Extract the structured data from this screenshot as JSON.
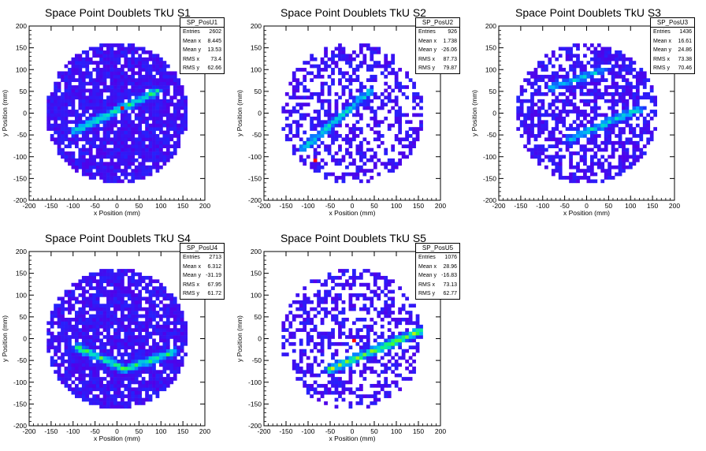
{
  "chart_data": [
    {
      "type": "heatmap",
      "title": "Space Point Doublets TkU S1",
      "xlabel": "x Position (mm)",
      "ylabel": "y Position (mm)",
      "xlim": [
        -200,
        200
      ],
      "ylim": [
        -200,
        200
      ],
      "xticks": [
        -200,
        -150,
        -100,
        -50,
        0,
        50,
        100,
        150,
        200
      ],
      "yticks": [
        -200,
        -150,
        -100,
        -50,
        0,
        50,
        100,
        150,
        200
      ],
      "histogram_name": "SP_PosU1",
      "stats": [
        {
          "label": "Entries",
          "value": "2602"
        },
        {
          "label": "Mean x",
          "value": "8.445"
        },
        {
          "label": "Mean y",
          "value": "13.53"
        },
        {
          "label": "RMS x",
          "value": "73.4"
        },
        {
          "label": "RMS y",
          "value": "62.66"
        }
      ],
      "occupancy": 0.85,
      "tracks": [
        {
          "from": [
            -95,
            -40
          ],
          "to": [
            90,
            50
          ],
          "peak": 0.55
        }
      ],
      "hotspots": [
        [
          10,
          15
        ]
      ]
    },
    {
      "type": "heatmap",
      "title": "Space Point Doublets TkU S2",
      "xlabel": "x Position (mm)",
      "ylabel": "y Position (mm)",
      "xlim": [
        -200,
        200
      ],
      "ylim": [
        -200,
        200
      ],
      "xticks": [
        -200,
        -150,
        -100,
        -50,
        0,
        50,
        100,
        150,
        200
      ],
      "yticks": [
        -200,
        -150,
        -100,
        -50,
        0,
        50,
        100,
        150,
        200
      ],
      "histogram_name": "SP_PosU2",
      "stats": [
        {
          "label": "Entries",
          "value": "926"
        },
        {
          "label": "Mean x",
          "value": "1.738"
        },
        {
          "label": "Mean y",
          "value": "-26.06"
        },
        {
          "label": "RMS x",
          "value": "87.73"
        },
        {
          "label": "RMS y",
          "value": "79.87"
        }
      ],
      "occupancy": 0.45,
      "tracks": [
        {
          "from": [
            -110,
            -80
          ],
          "to": [
            40,
            50
          ],
          "peak": 0.45
        }
      ],
      "hotspots": [
        [
          -85,
          -110
        ]
      ]
    },
    {
      "type": "heatmap",
      "title": "Space Point Doublets TkU S3",
      "xlabel": "x Position (mm)",
      "ylabel": "y Position (mm)",
      "xlim": [
        -200,
        200
      ],
      "ylim": [
        -200,
        200
      ],
      "xticks": [
        -200,
        -150,
        -100,
        -50,
        0,
        50,
        100,
        150,
        200
      ],
      "yticks": [
        -200,
        -150,
        -100,
        -50,
        0,
        50,
        100,
        150,
        200
      ],
      "histogram_name": "SP_PosU3",
      "stats": [
        {
          "label": "Entries",
          "value": "1436"
        },
        {
          "label": "Mean x",
          "value": "16.61"
        },
        {
          "label": "Mean y",
          "value": "24.86"
        },
        {
          "label": "RMS x",
          "value": "73.38"
        },
        {
          "label": "RMS y",
          "value": "70.46"
        }
      ],
      "occupancy": 0.62,
      "tracks": [
        {
          "from": [
            -40,
            -60
          ],
          "to": [
            120,
            10
          ],
          "peak": 0.45
        },
        {
          "from": [
            -80,
            60
          ],
          "to": [
            40,
            100
          ],
          "peak": 0.4
        }
      ],
      "hotspots": []
    },
    {
      "type": "heatmap",
      "title": "Space Point Doublets TkU S4",
      "xlabel": "x Position (mm)",
      "ylabel": "y Position (mm)",
      "xlim": [
        -200,
        200
      ],
      "ylim": [
        -200,
        200
      ],
      "xticks": [
        -200,
        -150,
        -100,
        -50,
        0,
        50,
        100,
        150,
        200
      ],
      "yticks": [
        -200,
        -150,
        -100,
        -50,
        0,
        50,
        100,
        150,
        200
      ],
      "histogram_name": "SP_PosU4",
      "stats": [
        {
          "label": "Entries",
          "value": "2713"
        },
        {
          "label": "Mean x",
          "value": "6.312"
        },
        {
          "label": "Mean y",
          "value": "-31.19"
        },
        {
          "label": "RMS x",
          "value": "67.95"
        },
        {
          "label": "RMS y",
          "value": "61.72"
        }
      ],
      "occupancy": 0.85,
      "tracks": [
        {
          "from": [
            -90,
            -20
          ],
          "to": [
            20,
            -70
          ],
          "peak": 0.6
        },
        {
          "from": [
            20,
            -70
          ],
          "to": [
            130,
            -30
          ],
          "peak": 0.55
        }
      ],
      "hotspots": []
    },
    {
      "type": "heatmap",
      "title": "Space Point Doublets TkU S5",
      "xlabel": "x Position (mm)",
      "ylabel": "y Position (mm)",
      "xlim": [
        -200,
        200
      ],
      "ylim": [
        -200,
        200
      ],
      "xticks": [
        -200,
        -150,
        -100,
        -50,
        0,
        50,
        100,
        150,
        200
      ],
      "yticks": [
        -200,
        -150,
        -100,
        -50,
        0,
        50,
        100,
        150,
        200
      ],
      "histogram_name": "SP_PosU5",
      "stats": [
        {
          "label": "Entries",
          "value": "1076"
        },
        {
          "label": "Mean x",
          "value": "28.96"
        },
        {
          "label": "Mean y",
          "value": "-16.83"
        },
        {
          "label": "RMS x",
          "value": "73.13"
        },
        {
          "label": "RMS y",
          "value": "62.77"
        }
      ],
      "occupancy": 0.45,
      "tracks": [
        {
          "from": [
            -50,
            -70
          ],
          "to": [
            160,
            20
          ],
          "peak": 0.65
        }
      ],
      "hotspots": [
        [
          5,
          -5
        ]
      ]
    }
  ]
}
